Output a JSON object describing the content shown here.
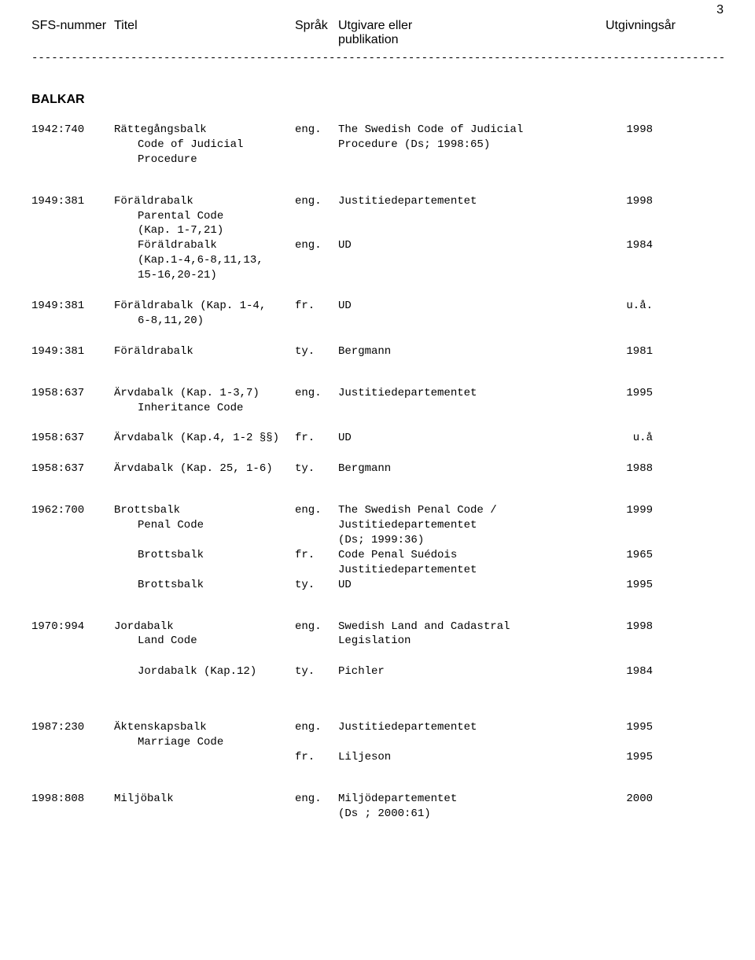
{
  "page_number": "3",
  "header": {
    "sfs": "SFS-nummer",
    "titel": "Titel",
    "sprak": "Språk",
    "utgivare_l1": "Utgivare eller",
    "utgivare_l2": "publikation",
    "year": "Utgivningsår"
  },
  "divider": "------------------------------------------------------------------------------------------------------------------------------------------------------",
  "section": "BALKAR",
  "rows": [
    {
      "sfs": "1942:740",
      "titel": "Rättegångsbalk",
      "sprak": "eng.",
      "utg": "The Swedish Code of Judicial",
      "year": "1998"
    },
    {
      "sfs": "",
      "titel_sub": "Code of Judicial",
      "sprak": "",
      "utg": "Procedure (Ds; 1998:65)",
      "year": ""
    },
    {
      "sfs": "",
      "titel_sub": "Procedure",
      "sprak": "",
      "utg": "",
      "year": ""
    },
    {
      "gap": "md"
    },
    {
      "sfs": "1949:381",
      "titel": "Föräldrabalk",
      "sprak": "eng.",
      "utg": "Justitiedepartementet",
      "year": "1998"
    },
    {
      "sfs": "",
      "titel_sub": "Parental Code",
      "sprak": "",
      "utg": "",
      "year": ""
    },
    {
      "sfs": "",
      "titel_sub": "(Kap. 1-7,21)",
      "sprak": "",
      "utg": "",
      "year": ""
    },
    {
      "sfs": "",
      "titel_sub": "Föräldrabalk",
      "sprak": "eng.",
      "utg": "UD",
      "year": "1984"
    },
    {
      "sfs": "",
      "titel_sub": "(Kap.1-4,6-8,11,13,",
      "sprak": "",
      "utg": "",
      "year": ""
    },
    {
      "sfs": "",
      "titel_sub": "15-16,20-21)",
      "sprak": "",
      "utg": "",
      "year": ""
    },
    {
      "gap": "sm"
    },
    {
      "sfs": "1949:381",
      "titel": "Föräldrabalk (Kap. 1-4,",
      "sprak": "fr.",
      "utg": "UD",
      "year": "u.å."
    },
    {
      "sfs": "",
      "titel_sub": "6-8,11,20)",
      "sprak": "",
      "utg": "",
      "year": ""
    },
    {
      "gap": "sm"
    },
    {
      "sfs": "1949:381",
      "titel": "Föräldrabalk",
      "sprak": "ty.",
      "utg": "Bergmann",
      "year": "1981"
    },
    {
      "gap": "md"
    },
    {
      "sfs": "1958:637",
      "titel": "Ärvdabalk (Kap. 1-3,7)",
      "sprak": "eng.",
      "utg": "Justitiedepartementet",
      "year": "1995"
    },
    {
      "sfs": "",
      "titel_sub": "Inheritance Code",
      "sprak": "",
      "utg": "",
      "year": ""
    },
    {
      "gap": "sm"
    },
    {
      "sfs": "1958:637",
      "titel": "Ärvdabalk (Kap.4, 1-2 §§)",
      "sprak": "fr.",
      "utg": "UD",
      "year": "u.å"
    },
    {
      "gap": "sm"
    },
    {
      "sfs": "1958:637",
      "titel": "Ärvdabalk (Kap. 25, 1-6)",
      "sprak": "ty.",
      "utg": "Bergmann",
      "year": "1988"
    },
    {
      "gap": "md"
    },
    {
      "sfs": "1962:700",
      "titel": "Brottsbalk",
      "sprak": "eng.",
      "utg": "The Swedish Penal Code /",
      "year": "1999"
    },
    {
      "sfs": "",
      "titel_sub": "Penal Code",
      "sprak": "",
      "utg": "Justitiedepartementet",
      "year": ""
    },
    {
      "sfs": "",
      "titel_sub": "",
      "sprak": "",
      "utg": "(Ds; 1999:36)",
      "year": ""
    },
    {
      "sfs": "",
      "titel_sub": "Brottsbalk",
      "sprak": "fr.",
      "utg": "Code Penal Suédois",
      "year": "1965"
    },
    {
      "sfs": "",
      "titel_sub": "",
      "sprak": "",
      "utg": "Justitiedepartementet",
      "year": ""
    },
    {
      "sfs": "",
      "titel_sub": "Brottsbalk",
      "sprak": "ty.",
      "utg": "UD",
      "year": "1995"
    },
    {
      "gap": "md"
    },
    {
      "sfs": "1970:994",
      "titel": "Jordabalk",
      "sprak": "eng.",
      "utg": "Swedish Land and Cadastral",
      "year": "1998"
    },
    {
      "sfs": "",
      "titel_sub": "Land Code",
      "sprak": "",
      "utg": "Legislation",
      "year": ""
    },
    {
      "gap": "sm"
    },
    {
      "sfs": "",
      "titel_sub": "Jordabalk (Kap.12)",
      "sprak": "ty.",
      "utg": "Pichler",
      "year": "1984"
    },
    {
      "gap": "lg"
    },
    {
      "sfs": "1987:230",
      "titel": "Äktenskapsbalk",
      "sprak": "eng.",
      "utg": "Justitiedepartementet",
      "year": "1995"
    },
    {
      "sfs": "",
      "titel_sub": "Marriage Code",
      "sprak": "",
      "utg": "",
      "year": ""
    },
    {
      "sfs": "",
      "titel_sub": "",
      "sprak": "fr.",
      "utg": "Liljeson",
      "year": "1995"
    },
    {
      "gap": "md"
    },
    {
      "sfs": "1998:808",
      "titel": "Miljöbalk",
      "sprak": "eng.",
      "utg": "Miljödepartementet",
      "year": "2000"
    },
    {
      "sfs": "",
      "titel_sub": "",
      "sprak": "",
      "utg": "(Ds ; 2000:61)",
      "year": ""
    }
  ]
}
